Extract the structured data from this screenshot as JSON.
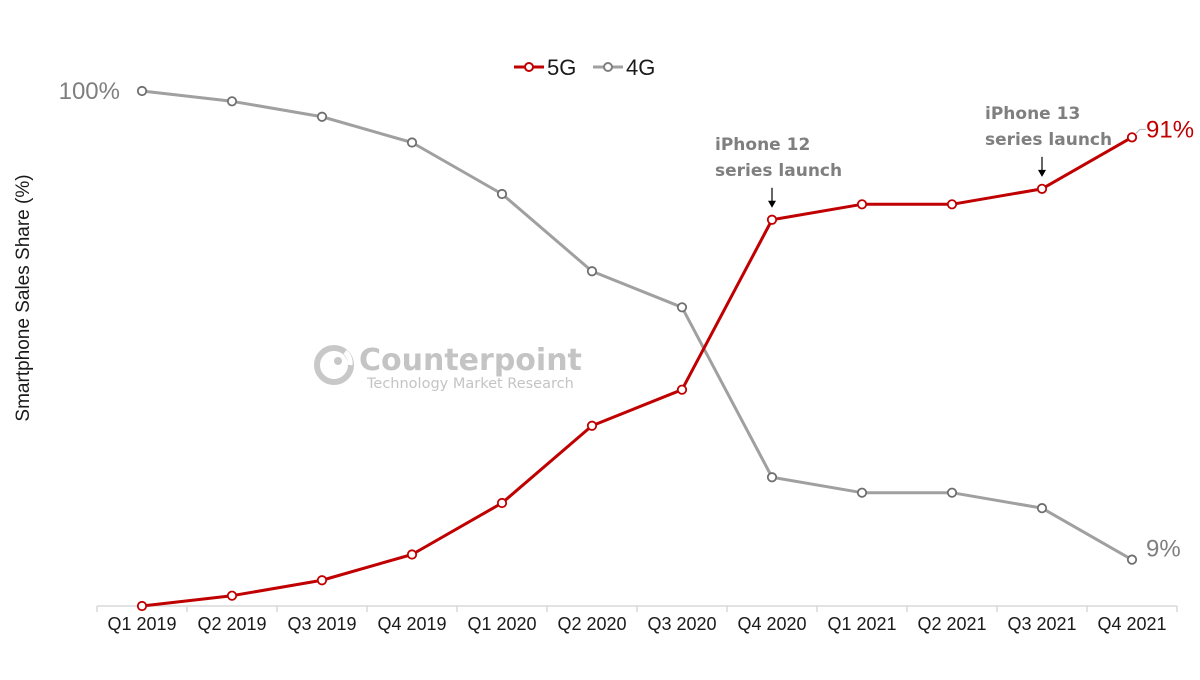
{
  "chart_data": {
    "type": "line",
    "title": "",
    "xlabel": "",
    "ylabel": "Smartphone Sales Share (%)",
    "ylim": [
      0,
      100
    ],
    "grid": false,
    "legend_position": "top-center",
    "categories": [
      "Q1 2019",
      "Q2 2019",
      "Q3 2019",
      "Q4 2019",
      "Q1 2020",
      "Q2 2020",
      "Q3 2020",
      "Q4 2020",
      "Q1 2021",
      "Q2 2021",
      "Q3 2021",
      "Q4 2021"
    ],
    "series": [
      {
        "name": "5G",
        "color": "#c00000",
        "values": [
          0,
          2,
          5,
          10,
          20,
          35,
          42,
          75,
          78,
          78,
          81,
          91
        ]
      },
      {
        "name": "4G",
        "color": "#a0a0a0",
        "values": [
          100,
          98,
          95,
          90,
          80,
          65,
          58,
          25,
          22,
          22,
          19,
          9
        ]
      }
    ],
    "data_labels": [
      {
        "series": "4G",
        "index": 0,
        "text": "100%",
        "color": "#7f7f7f"
      },
      {
        "series": "5G",
        "index": 11,
        "text": "91%",
        "color": "#c00000"
      },
      {
        "series": "4G",
        "index": 11,
        "text": "9%",
        "color": "#7f7f7f"
      }
    ],
    "annotations": [
      {
        "index": 7,
        "series": "5G",
        "lines": [
          "iPhone 12",
          "series launch"
        ]
      },
      {
        "index": 10,
        "series": "5G",
        "lines": [
          "iPhone 13",
          "series launch"
        ]
      }
    ]
  },
  "legend": [
    {
      "label": "5G",
      "color": "#c00000"
    },
    {
      "label": "4G",
      "color": "#a0a0a0"
    }
  ],
  "watermark": {
    "title": "Counterpoint",
    "subtitle": "Technology Market Research"
  }
}
